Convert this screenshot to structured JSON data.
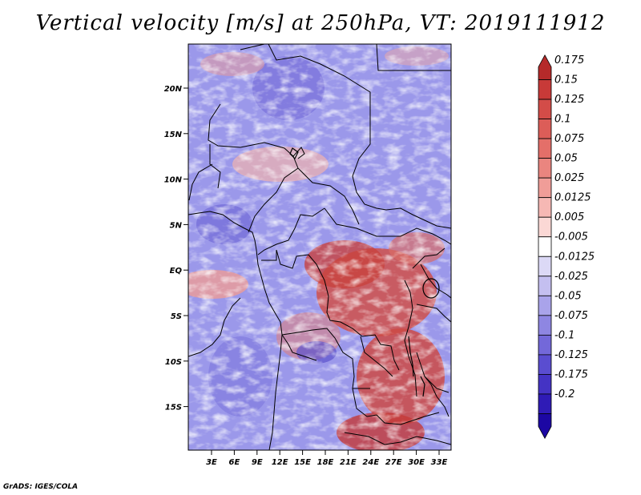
{
  "title": "Vertical velocity [m/s] at 250hPa, VT: 2019111912",
  "credit": "GrADS: IGES/COLA",
  "map": {
    "lat_labels": [
      "20N",
      "15N",
      "10N",
      "5N",
      "EQ",
      "5S",
      "10S",
      "15S"
    ],
    "lon_labels": [
      "3E",
      "6E",
      "9E",
      "12E",
      "15E",
      "18E",
      "21E",
      "24E",
      "27E",
      "30E",
      "33E"
    ]
  },
  "colorbar": {
    "labels": [
      "0.175",
      "0.15",
      "0.125",
      "0.1",
      "0.075",
      "0.05",
      "0.025",
      "0.0125",
      "0.005",
      "-0.005",
      "-0.0125",
      "-0.025",
      "-0.05",
      "-0.075",
      "-0.1",
      "-0.125",
      "-0.175",
      "-0.2"
    ],
    "colors": [
      "#b52a2a",
      "#c83a38",
      "#d34c48",
      "#dc5d58",
      "#e46f69",
      "#ea857f",
      "#f09d98",
      "#f6b8b4",
      "#fbd8d5",
      "#ffffff",
      "#dcd9f6",
      "#c4bff0",
      "#a9a3ea",
      "#8e86e2",
      "#7368d9",
      "#5a4dd0",
      "#4433c4",
      "#2f1bb6",
      "#1c07a3"
    ]
  }
}
